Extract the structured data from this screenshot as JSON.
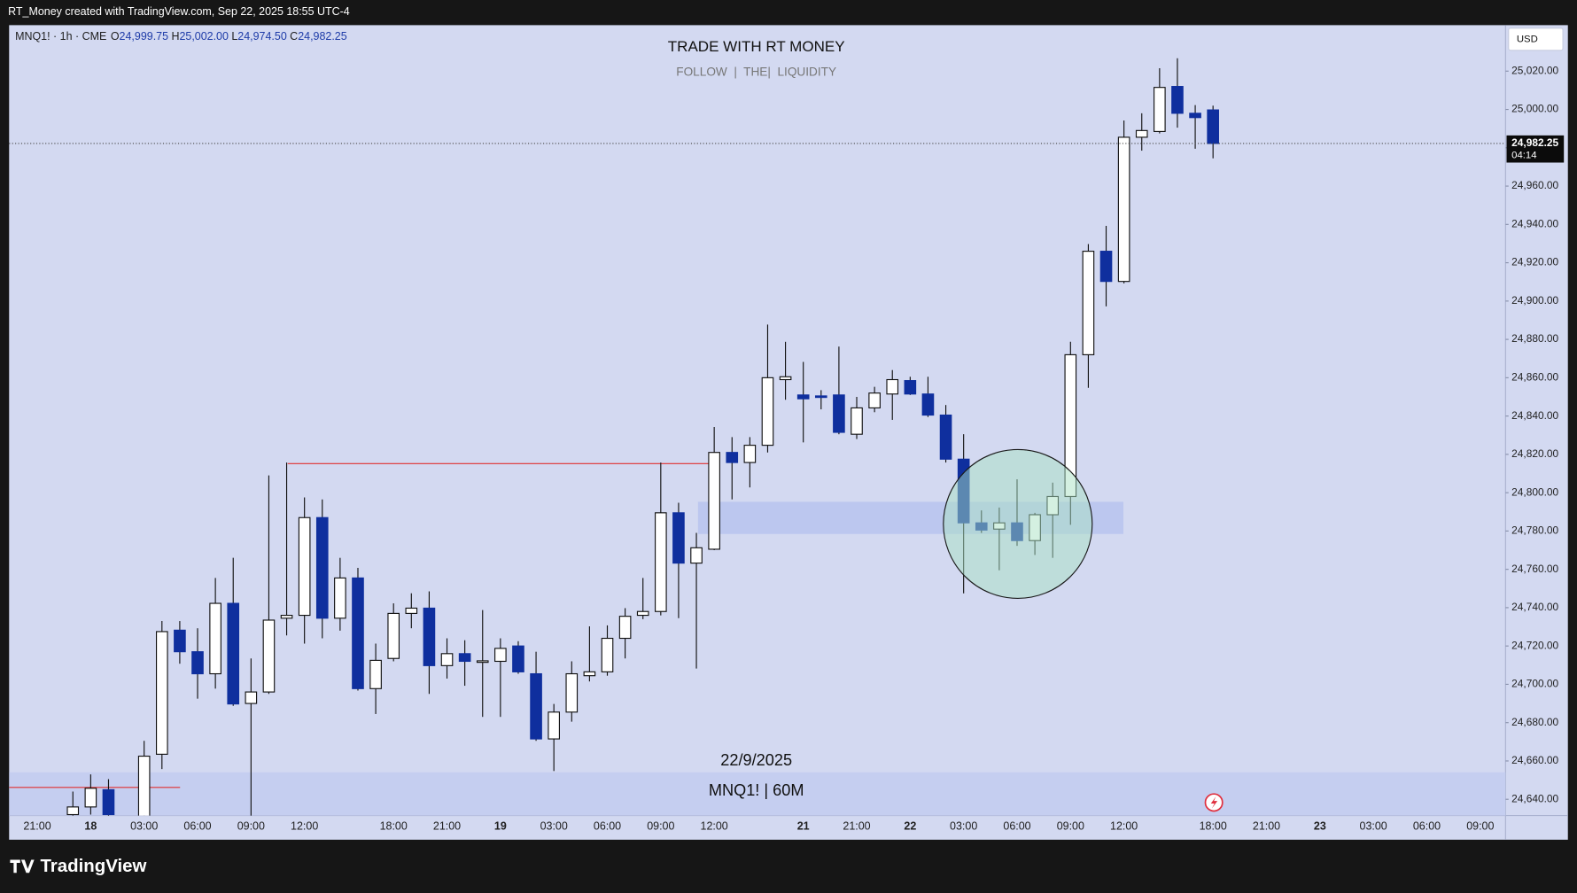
{
  "top_bar": "RT_Money created with TradingView.com, Sep 22, 2025 18:55 UTC-4",
  "brand": "TradingView",
  "chart_data": {
    "type": "candlestick",
    "title": "TRADE WITH RT MONEY",
    "subtitle": "FOLLOW  |  THE|  LIQUIDITY",
    "symbol_info": "MNQ1! · 1h · CME",
    "ohlc_legend": [
      {
        "key": "O",
        "text": "24,999.75"
      },
      {
        "key": "H",
        "text": "25,002.00"
      },
      {
        "key": "L",
        "text": "24,974.50"
      },
      {
        "key": "C",
        "text": "24,982.25"
      }
    ],
    "annotations": [
      "22/9/2025",
      "MNQ1! | 60M"
    ],
    "currency": "USD",
    "last_price": {
      "value": 24982.25,
      "label": "24,982.25"
    },
    "countdown": "04:14",
    "up_color": "#ffffff",
    "down_color": "#0f2f9e",
    "wick_color": "#111111",
    "background": "#d3d9f1",
    "grid": false,
    "ylim": [
      24631.5,
      25044
    ],
    "yticks": [
      {
        "value": 24640,
        "label": "24,640.00"
      },
      {
        "value": 24660,
        "label": "24,660.00"
      },
      {
        "value": 24680,
        "label": "24,680.00"
      },
      {
        "value": 24700,
        "label": "24,700.00"
      },
      {
        "value": 24720,
        "label": "24,720.00"
      },
      {
        "value": 24740,
        "label": "24,740.00"
      },
      {
        "value": 24760,
        "label": "24,760.00"
      },
      {
        "value": 24780,
        "label": "24,780.00"
      },
      {
        "value": 24800,
        "label": "24,800.00"
      },
      {
        "value": 24820,
        "label": "24,820.00"
      },
      {
        "value": 24840,
        "label": "24,840.00"
      },
      {
        "value": 24860,
        "label": "24,860.00"
      },
      {
        "value": 24880,
        "label": "24,880.00"
      },
      {
        "value": 24900,
        "label": "24,900.00"
      },
      {
        "value": 24920,
        "label": "24,920.00"
      },
      {
        "value": 24940,
        "label": "24,940.00"
      },
      {
        "value": 24960,
        "label": "24,960.00"
      },
      {
        "value": 24980,
        "label": "24,980.00"
      },
      {
        "value": 25000,
        "label": "25,000.00"
      },
      {
        "value": 25020,
        "label": "25,020.00"
      }
    ],
    "categories": [
      null,
      "21:00",
      null,
      null,
      "18",
      null,
      null,
      "03:00",
      null,
      null,
      "06:00",
      null,
      null,
      "09:00",
      null,
      null,
      "12:00",
      null,
      null,
      null,
      null,
      "18:00",
      null,
      null,
      "21:00",
      null,
      null,
      "19",
      null,
      null,
      "03:00",
      null,
      null,
      "06:00",
      null,
      null,
      "09:00",
      null,
      null,
      "12:00",
      null,
      null,
      null,
      null,
      "21",
      null,
      null,
      "21:00",
      null,
      null,
      "22",
      null,
      null,
      "03:00",
      null,
      null,
      "06:00",
      null,
      null,
      "09:00",
      null,
      null,
      "12:00",
      null,
      null,
      null,
      null,
      "18:00",
      null,
      null,
      "21:00",
      null,
      null,
      "23",
      null,
      null,
      "03:00",
      null,
      null,
      "06:00",
      null,
      null,
      "09:00",
      null
    ],
    "open": [
      null,
      null,
      null,
      24632,
      24636,
      24645,
      null,
      24631,
      24663.5,
      24728.25,
      24717,
      24705.5,
      24742.25,
      24690,
      24696,
      24734.5,
      24736,
      24787,
      24734.5,
      24755.5,
      24697.75,
      24713.5,
      24737,
      24739.75,
      24709.75,
      24716,
      24712,
      24712,
      24720,
      24705.5,
      24671.5,
      24685.5,
      24704.5,
      24706.5,
      24724,
      24736,
      24738,
      24789.5,
      24763.25,
      24770.5,
      24821,
      24815.75,
      24824.75,
      24859,
      24851,
      24850.5,
      24851,
      24830.5,
      24844.25,
      24851.5,
      24858.5,
      24851.5,
      24840.5,
      24817.5,
      24784.25,
      24781,
      24784.25,
      24775,
      24788.5,
      24798,
      24872,
      24926,
      24910.25,
      24985.5,
      24988.5,
      25012,
      24998,
      24999.75,
      null,
      null,
      null,
      null,
      null,
      null,
      null,
      null,
      null,
      null,
      null,
      null,
      null,
      null,
      null,
      null
    ],
    "high": [
      null,
      null,
      null,
      24644,
      24653,
      24650.5,
      null,
      24670.5,
      24733,
      24733,
      24729.25,
      24755.5,
      24766,
      24713.5,
      24809,
      24815.75,
      24797.5,
      24796.5,
      24766,
      24760.75,
      24721.25,
      24742.25,
      24747.5,
      24748.5,
      24724,
      24723,
      24738.75,
      24724,
      24722.5,
      24717,
      24689.75,
      24712,
      24730.25,
      24730.75,
      24739.75,
      24755.5,
      24815.75,
      24794.75,
      24779,
      24834.25,
      24829,
      24829,
      24887.75,
      24878.75,
      24868.25,
      24853.5,
      24876.25,
      24850,
      24855.25,
      24864,
      24860.5,
      24860.5,
      24845.75,
      24830.5,
      24790.75,
      24792.25,
      24807,
      24789.5,
      24805.25,
      24878.75,
      24929.75,
      24939.25,
      24994.25,
      24998,
      25021.5,
      25026.75,
      25002.25,
      25002,
      null,
      null,
      null,
      null,
      null,
      null,
      null,
      null,
      null,
      null,
      null,
      null,
      null,
      null,
      null,
      null
    ],
    "low": [
      null,
      null,
      null,
      24631,
      24632,
      24630,
      null,
      24630,
      24655.75,
      24710.75,
      24692.5,
      24697.75,
      24688.75,
      24630,
      24695,
      24725.5,
      24721.25,
      24724,
      24728,
      24696.75,
      24684.5,
      24712,
      24729.25,
      24695,
      24703,
      24699.25,
      24683,
      24683,
      24705.5,
      24670.5,
      24654.75,
      24680.5,
      24701.5,
      24704.5,
      24713.5,
      24734,
      24736,
      24734.5,
      24708.25,
      24770,
      24796.5,
      24802.75,
      24821,
      24848.5,
      24826.25,
      24843.5,
      24830.5,
      24828,
      24842,
      24838,
      24851,
      24839.5,
      24815.75,
      24747.5,
      24779,
      24759.5,
      24772.25,
      24767.5,
      24766,
      24783.25,
      24854.75,
      24897.25,
      24909.25,
      24978.5,
      24987.5,
      24990.5,
      24979.5,
      24974.5,
      null,
      null,
      null,
      null,
      null,
      null,
      null,
      null,
      null,
      null,
      null,
      null,
      null,
      null,
      null,
      null
    ],
    "close": [
      null,
      null,
      null,
      24636,
      24645.75,
      24632,
      null,
      24662.5,
      24727.5,
      24717,
      24705.5,
      24742.25,
      24689.75,
      24696,
      24733.5,
      24736,
      24787,
      24734.5,
      24755.5,
      24697.75,
      24712.5,
      24737,
      24739.75,
      24709.75,
      24716,
      24712,
      24712.25,
      24718.75,
      24706.5,
      24671.5,
      24685.5,
      24705.5,
      24706.5,
      24724,
      24735.5,
      24738,
      24789.5,
      24763.25,
      24771.25,
      24821,
      24815.75,
      24824.75,
      24860,
      24860.5,
      24849,
      24850,
      24831.5,
      24844.25,
      24852,
      24859,
      24851.5,
      24840.5,
      24817.5,
      24784.25,
      24780.5,
      24784.25,
      24775,
      24788.5,
      24798,
      24872,
      24926,
      24910.25,
      24985.5,
      24989,
      25011.5,
      24998,
      24995.75,
      24982.25,
      null,
      null,
      null,
      null,
      null,
      null,
      null,
      null,
      null,
      null,
      null,
      null,
      null,
      null,
      null,
      null
    ]
  }
}
